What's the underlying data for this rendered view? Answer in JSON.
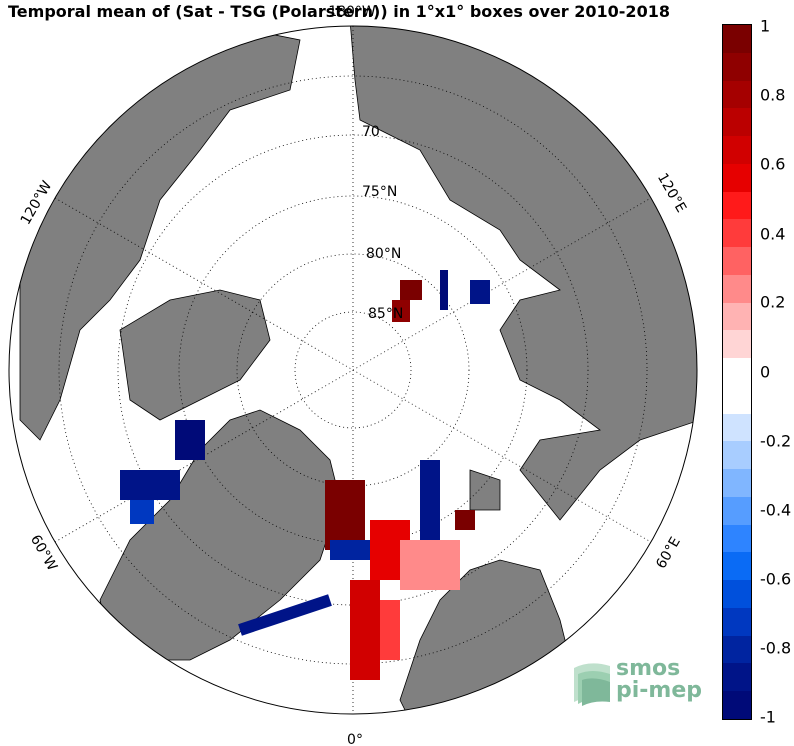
{
  "title": "Temporal mean of (Sat - TSG (Polarstern)) in 1°x1° boxes over 2010-2018",
  "map": {
    "projection": "north polar stereographic",
    "lat_labels": [
      "70",
      "75°N",
      "80°N",
      "85°N"
    ],
    "lon_labels": [
      "180°W",
      "120°W",
      "60°W",
      "0°",
      "60°E",
      "120°E"
    ],
    "land_color": "#808080",
    "ocean_color": "#ffffff",
    "grid_style": "dotted"
  },
  "colorbar": {
    "ticks": [
      "1",
      "0.8",
      "0.6",
      "0.4",
      "0.2",
      "0",
      "-0.2",
      "-0.4",
      "-0.6",
      "-0.8",
      "-1"
    ],
    "colors": [
      "#7a0000",
      "#8f0000",
      "#a50000",
      "#bb0000",
      "#d10000",
      "#e60000",
      "#ff1a1a",
      "#ff3b3b",
      "#ff6262",
      "#ff8a8a",
      "#ffb3b3",
      "#ffd5d5",
      "#ffffff",
      "#ffffff",
      "#cfe3ff",
      "#a8cdff",
      "#80b6ff",
      "#569dff",
      "#2e84ff",
      "#0a6bf5",
      "#0050dc",
      "#0038c0",
      "#0024a0",
      "#001488",
      "#000a78"
    ]
  },
  "logo": {
    "line1": "smos",
    "line2": "pi-mep"
  }
}
